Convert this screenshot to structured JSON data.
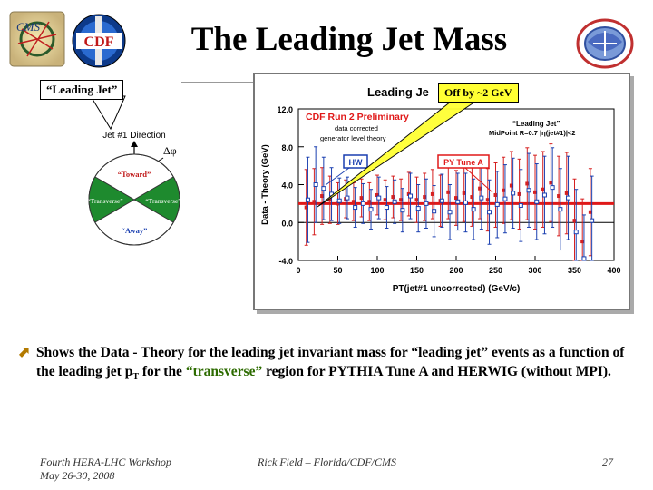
{
  "slide": {
    "title": "The Leading Jet Mass",
    "callout_left": "“Leading Jet”",
    "callout_right": "Off by ~2 GeV",
    "bullet_part1": "Shows the Data - Theory for the leading jet invariant mass for “leading jet” events as a function of the leading jet p",
    "bullet_sub": "T",
    "bullet_part2": " for the ",
    "bullet_highlight": "“transverse”",
    "bullet_part3": " region for PYTHIA Tune A and HERWIG (without MPI)."
  },
  "logos": {
    "cms": "CMS",
    "cdf": "CDF"
  },
  "diagram": {
    "direction_label": "Jet #1 Direction",
    "dphi_label": "Δφ",
    "toward": "“Toward”",
    "away": "“Away”",
    "transverse_left": "“Transverse”",
    "transverse_right": "“Transverse”"
  },
  "footer": {
    "workshop": "Fourth HERA-LHC Workshop",
    "dates": "May 26-30, 2008",
    "author": "Rick Field – Florida/CDF/CMS",
    "page": "27"
  },
  "chart_data": {
    "type": "scatter",
    "title": "Leading Je",
    "inset_title": "CDF Run 2 Preliminary",
    "inset_line1": "data corrected",
    "inset_line2": "generator level theory",
    "legend_title": "“Leading Jet”",
    "legend_cuts": "MidPoint R=0.7 |η(jet#1)|<2",
    "hw_label": "HW",
    "py_label": "PY Tune A",
    "xlabel": "PT(jet#1 uncorrected)  (GeV/c)",
    "ylabel": "Data - Theory (GeV)",
    "xlim": [
      0,
      400
    ],
    "ylim": [
      -4.0,
      12.0
    ],
    "xticks": [
      "0",
      "50",
      "100",
      "150",
      "200",
      "250",
      "300",
      "350",
      "400"
    ],
    "yticks": [
      "-4.0",
      "0.0",
      "4.0",
      "8.0",
      "12.0"
    ],
    "ref_line_y": 2.0,
    "series": [
      {
        "name": "PY Tune A",
        "color": "#d62020",
        "marker": "square",
        "x": [
          10,
          20,
          30,
          40,
          50,
          60,
          70,
          80,
          90,
          100,
          110,
          120,
          130,
          140,
          150,
          160,
          170,
          180,
          190,
          200,
          210,
          220,
          230,
          240,
          250,
          260,
          270,
          280,
          290,
          300,
          310,
          320,
          330,
          340,
          350,
          360,
          370
        ],
        "y": [
          1.6,
          2.2,
          2.8,
          2.4,
          2.0,
          2.5,
          2.2,
          2.6,
          2.2,
          2.9,
          2.4,
          2.7,
          2.4,
          3.0,
          2.4,
          2.7,
          3.0,
          2.3,
          3.2,
          2.6,
          3.1,
          2.7,
          3.6,
          2.4,
          2.9,
          3.4,
          3.9,
          3.0,
          4.1,
          3.2,
          3.5,
          4.2,
          2.8,
          3.1,
          0.2,
          -2.0,
          1.1
        ],
        "err": [
          4.0,
          3.5,
          3.0,
          2.5,
          2.2,
          2.0,
          2.0,
          2.0,
          2.0,
          2.1,
          2.1,
          2.2,
          2.2,
          2.3,
          2.4,
          2.5,
          2.6,
          2.7,
          2.8,
          2.9,
          3.0,
          3.1,
          3.2,
          3.3,
          3.4,
          3.5,
          3.6,
          3.7,
          3.8,
          3.9,
          4.0,
          4.1,
          4.2,
          4.3,
          4.4,
          4.5,
          4.6
        ]
      },
      {
        "name": "HW",
        "color": "#1a3fb0",
        "marker": "open-square",
        "x": [
          12,
          22,
          32,
          42,
          52,
          62,
          72,
          82,
          92,
          102,
          112,
          122,
          132,
          142,
          152,
          162,
          172,
          182,
          192,
          202,
          212,
          222,
          232,
          242,
          252,
          262,
          272,
          282,
          292,
          302,
          312,
          322,
          332,
          342,
          352,
          362,
          372
        ],
        "y": [
          2.4,
          4.0,
          3.6,
          3.0,
          2.3,
          2.6,
          1.6,
          2.0,
          1.4,
          2.6,
          1.6,
          2.2,
          1.3,
          2.8,
          1.5,
          2.0,
          1.2,
          2.3,
          1.1,
          2.2,
          2.1,
          1.4,
          2.6,
          1.1,
          1.9,
          2.5,
          3.1,
          1.8,
          3.4,
          2.2,
          2.9,
          3.7,
          1.4,
          2.6,
          -1.0,
          -3.8,
          0.2
        ],
        "err": [
          4.5,
          4.0,
          3.3,
          2.8,
          2.4,
          2.2,
          2.1,
          2.1,
          2.1,
          2.2,
          2.2,
          2.3,
          2.3,
          2.4,
          2.5,
          2.6,
          2.7,
          2.8,
          2.9,
          3.0,
          3.1,
          3.2,
          3.3,
          3.4,
          3.5,
          3.6,
          3.7,
          3.8,
          3.9,
          4.0,
          4.1,
          4.2,
          4.3,
          4.4,
          4.5,
          4.6,
          4.7
        ]
      }
    ]
  }
}
